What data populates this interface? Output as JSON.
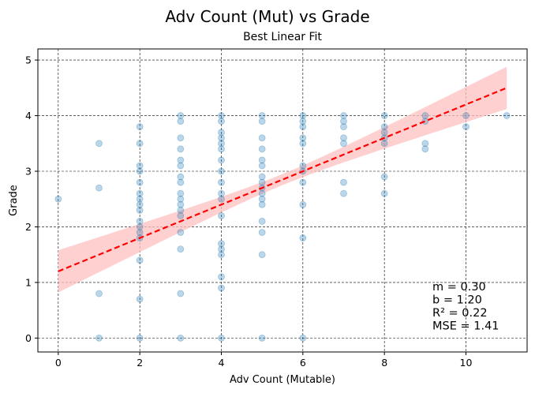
{
  "chart_data": {
    "type": "scatter",
    "title": "Adv Count (Mut) vs Grade",
    "subtitle": "Best Linear Fit",
    "xlabel": "Adv Count (Mutable)",
    "ylabel": "Grade",
    "xlim": [
      -0.5,
      11.5
    ],
    "ylim": [
      -0.25,
      5.2
    ],
    "xticks": [
      0,
      2,
      4,
      6,
      8,
      10
    ],
    "yticks": [
      0,
      1,
      2,
      3,
      4,
      5
    ],
    "grid": true,
    "point_color": "#1f77b4",
    "fit_color": "#ff0000",
    "band_color": "#ffc0c0",
    "points": [
      [
        0,
        2.5
      ],
      [
        1,
        0
      ],
      [
        1,
        0.8
      ],
      [
        1,
        2.7
      ],
      [
        1,
        3.5
      ],
      [
        2,
        0
      ],
      [
        2,
        0.7
      ],
      [
        2,
        1.4
      ],
      [
        2,
        1.8
      ],
      [
        2,
        1.9
      ],
      [
        2,
        2.0
      ],
      [
        2,
        2.1
      ],
      [
        2,
        2.3
      ],
      [
        2,
        2.4
      ],
      [
        2,
        2.5
      ],
      [
        2,
        2.6
      ],
      [
        2,
        2.8
      ],
      [
        2,
        3.0
      ],
      [
        2,
        3.1
      ],
      [
        2,
        3.5
      ],
      [
        2,
        3.8
      ],
      [
        3,
        0
      ],
      [
        3,
        0.8
      ],
      [
        3,
        1.6
      ],
      [
        3,
        1.9
      ],
      [
        3,
        2.2
      ],
      [
        3,
        2.3
      ],
      [
        3,
        2.4
      ],
      [
        3,
        2.5
      ],
      [
        3,
        2.6
      ],
      [
        3,
        2.8
      ],
      [
        3,
        2.9
      ],
      [
        3,
        3.1
      ],
      [
        3,
        3.2
      ],
      [
        3,
        3.4
      ],
      [
        3,
        3.6
      ],
      [
        3,
        3.9
      ],
      [
        3,
        4.0
      ],
      [
        4,
        0
      ],
      [
        4,
        0.9
      ],
      [
        4,
        1.1
      ],
      [
        4,
        1.5
      ],
      [
        4,
        1.6
      ],
      [
        4,
        1.7
      ],
      [
        4,
        2.2
      ],
      [
        4,
        2.5
      ],
      [
        4,
        2.6
      ],
      [
        4,
        2.8
      ],
      [
        4,
        3.0
      ],
      [
        4,
        3.2
      ],
      [
        4,
        3.4
      ],
      [
        4,
        3.5
      ],
      [
        4,
        3.6
      ],
      [
        4,
        3.7
      ],
      [
        4,
        3.9
      ],
      [
        4,
        4.0
      ],
      [
        5,
        0
      ],
      [
        5,
        1.5
      ],
      [
        5,
        1.9
      ],
      [
        5,
        2.1
      ],
      [
        5,
        2.4
      ],
      [
        5,
        2.5
      ],
      [
        5,
        2.6
      ],
      [
        5,
        2.7
      ],
      [
        5,
        2.8
      ],
      [
        5,
        2.9
      ],
      [
        5,
        3.1
      ],
      [
        5,
        3.2
      ],
      [
        5,
        3.4
      ],
      [
        5,
        3.6
      ],
      [
        5,
        3.9
      ],
      [
        5,
        4.0
      ],
      [
        6,
        0
      ],
      [
        6,
        1.8
      ],
      [
        6,
        2.4
      ],
      [
        6,
        2.8
      ],
      [
        6,
        3.0
      ],
      [
        6,
        3.1
      ],
      [
        6,
        3.5
      ],
      [
        6,
        3.6
      ],
      [
        6,
        3.8
      ],
      [
        6,
        3.9
      ],
      [
        6,
        4.0
      ],
      [
        7,
        2.6
      ],
      [
        7,
        2.8
      ],
      [
        7,
        3.5
      ],
      [
        7,
        3.6
      ],
      [
        7,
        3.8
      ],
      [
        7,
        3.9
      ],
      [
        7,
        4.0
      ],
      [
        8,
        2.6
      ],
      [
        8,
        2.9
      ],
      [
        8,
        3.5
      ],
      [
        8,
        3.6
      ],
      [
        8,
        3.7
      ],
      [
        8,
        3.8
      ],
      [
        8,
        4.0
      ],
      [
        9,
        3.4
      ],
      [
        9,
        3.5
      ],
      [
        9,
        3.9
      ],
      [
        9,
        4.0
      ],
      [
        10,
        3.8
      ],
      [
        10,
        4.0
      ],
      [
        11,
        4.0
      ]
    ],
    "fit": {
      "slope": 0.3,
      "intercept": 1.2,
      "band_halfwidth_at_min": 0.38,
      "band_halfwidth_at_center": 0.1,
      "band_halfwidth_at_max": 0.38
    },
    "stats_lines": [
      "m = 0.30",
      "b = 1.20",
      "R² = 0.22",
      "MSE = 1.41"
    ]
  }
}
